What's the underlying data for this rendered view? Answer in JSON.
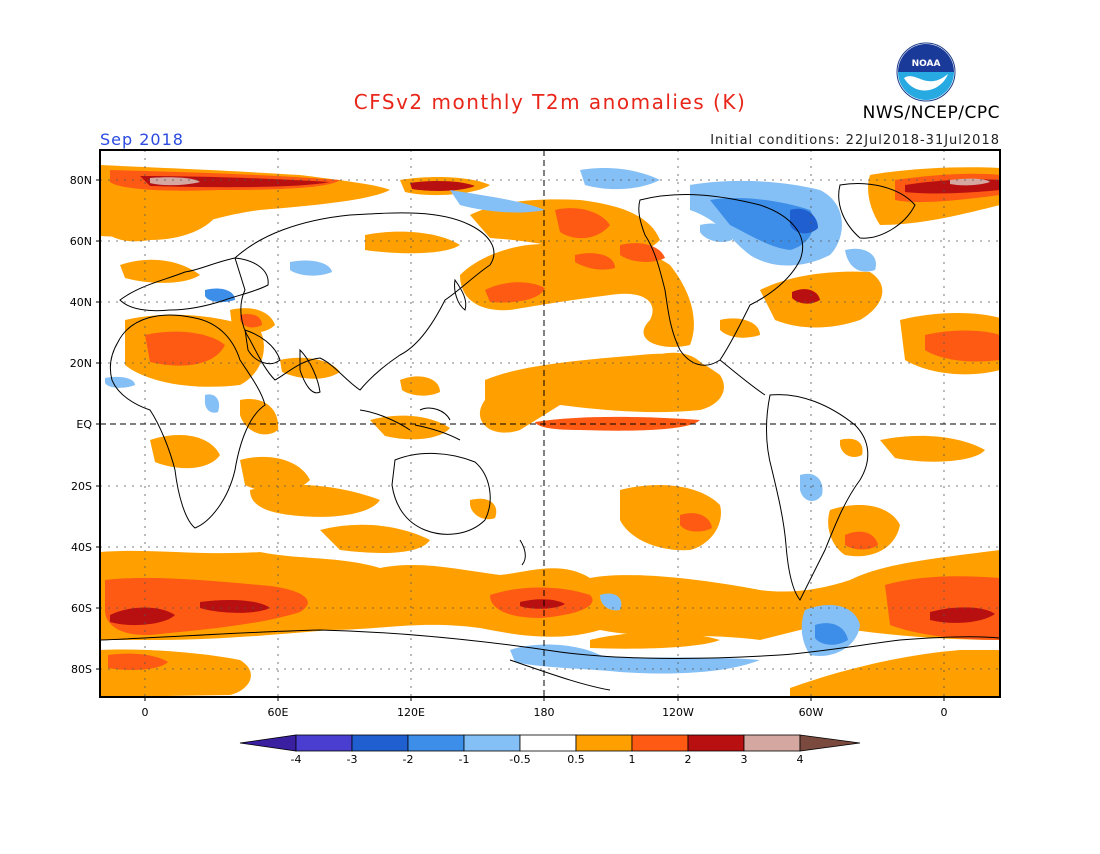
{
  "header": {
    "title": "CFSv2 monthly T2m anomalies (K)",
    "month": "Sep 2018",
    "agency": "NWS/NCEP/CPC",
    "initial_conditions": "Initial conditions: 22Jul2018-31Jul2018",
    "logo_text": "NOAA",
    "title_color": "#e8261a",
    "month_color": "#2a4ae0"
  },
  "map": {
    "lat_labels": [
      "80N",
      "60N",
      "40N",
      "20N",
      "EQ",
      "20S",
      "40S",
      "60S",
      "80S"
    ],
    "lon_labels": [
      "0",
      "60E",
      "120E",
      "180",
      "120W",
      "60W",
      "0"
    ]
  },
  "colorbar": {
    "tick_labels": [
      "-4",
      "-3",
      "-2",
      "-1",
      "-0.5",
      "0.5",
      "1",
      "2",
      "3",
      "4"
    ],
    "colors": [
      "#3a1fa0",
      "#4a3ed0",
      "#1f5fd0",
      "#3d8ee8",
      "#84bff5",
      "#ffffff",
      "#ffa000",
      "#ff5a14",
      "#b81010",
      "#d4a8a0",
      "#7a4a3e"
    ]
  }
}
